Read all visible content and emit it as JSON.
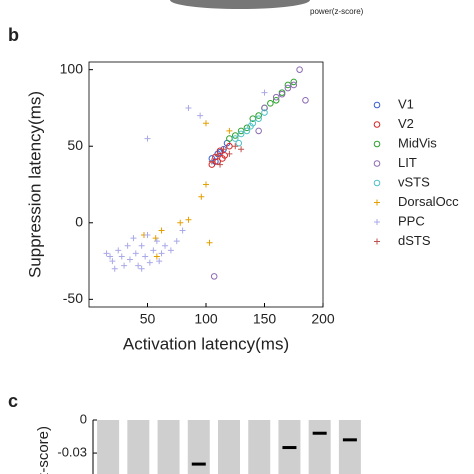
{
  "caption": "power(z-score)",
  "chart_data": [
    {
      "type": "scatter",
      "panel": "b",
      "xlabel": "Activation latency(ms)",
      "ylabel": "Suppression latency(ms)",
      "xlim": [
        0,
        200
      ],
      "ylim": [
        -55,
        105
      ],
      "xticks": [
        50,
        100,
        150,
        200
      ],
      "yticks": [
        -50,
        0,
        50,
        100
      ],
      "series": [
        {
          "name": "V1",
          "color": "#3a5fcd",
          "marker": "o",
          "x": [
            105,
            110,
            115,
            108,
            118,
            112
          ],
          "values": [
            42,
            45,
            48,
            40,
            52,
            46
          ]
        },
        {
          "name": "V2",
          "color": "#d62728",
          "marker": "o",
          "x": [
            105,
            108,
            112,
            116,
            120,
            110,
            114
          ],
          "values": [
            38,
            43,
            47,
            44,
            50,
            40,
            42
          ]
        },
        {
          "name": "MidVis",
          "color": "#2ca02c",
          "marker": "o",
          "x": [
            120,
            130,
            140,
            150,
            160,
            170,
            175,
            135,
            145,
            125,
            155,
            165
          ],
          "values": [
            55,
            60,
            68,
            75,
            80,
            90,
            92,
            62,
            70,
            57,
            78,
            85
          ]
        },
        {
          "name": "LIT",
          "color": "#8c6bb1",
          "marker": "o",
          "x": [
            150,
            160,
            170,
            175,
            180,
            185,
            165,
            107,
            145
          ],
          "values": [
            75,
            82,
            88,
            90,
            100,
            80,
            84,
            -35,
            60
          ]
        },
        {
          "name": "vSTS",
          "color": "#4fc1c9",
          "marker": "o",
          "x": [
            125,
            130,
            135,
            140,
            145,
            150,
            128,
            138
          ],
          "values": [
            55,
            58,
            60,
            65,
            68,
            72,
            52,
            63
          ]
        },
        {
          "name": "DorsalOcc",
          "color": "#e69f00",
          "marker": "+",
          "x": [
            47,
            57,
            58,
            62,
            78,
            85,
            96,
            100,
            103,
            100,
            120
          ],
          "values": [
            -8,
            -10,
            -22,
            -5,
            0,
            2,
            17,
            25,
            -13,
            65,
            60
          ]
        },
        {
          "name": "PPC",
          "color": "#a9a9e8",
          "marker": "+",
          "x": [
            15,
            18,
            20,
            25,
            28,
            30,
            33,
            35,
            38,
            40,
            42,
            45,
            48,
            50,
            52,
            55,
            58,
            60,
            62,
            65,
            70,
            75,
            80,
            95,
            85,
            50,
            150,
            45,
            22
          ],
          "values": [
            -20,
            -22,
            -25,
            -18,
            -22,
            -28,
            -15,
            -24,
            -10,
            -20,
            -28,
            -15,
            -22,
            -8,
            -26,
            -18,
            -12,
            -25,
            -20,
            -15,
            -18,
            -12,
            -5,
            70,
            75,
            55,
            85,
            -30,
            -30
          ]
        },
        {
          "name": "dSTS",
          "color": "#c0504d",
          "marker": "+",
          "x": [
            105,
            110,
            115,
            120,
            125,
            130,
            112
          ],
          "values": [
            40,
            44,
            48,
            45,
            50,
            48,
            38
          ]
        }
      ]
    },
    {
      "type": "bar",
      "panel": "c",
      "ylabel": "z-score)",
      "ylim": [
        -0.049,
        0
      ],
      "yticks": [
        0,
        -0.03
      ],
      "categories": [
        null,
        null,
        null,
        null,
        null,
        null,
        null,
        null,
        null
      ],
      "values": [
        -0.049,
        -0.049,
        -0.049,
        -0.049,
        -0.049,
        -0.049,
        -0.049,
        -0.049,
        -0.049
      ],
      "color": "#cfcfcf",
      "means": [
        null,
        null,
        null,
        -0.04,
        null,
        null,
        -0.025,
        -0.012,
        -0.018
      ]
    }
  ]
}
